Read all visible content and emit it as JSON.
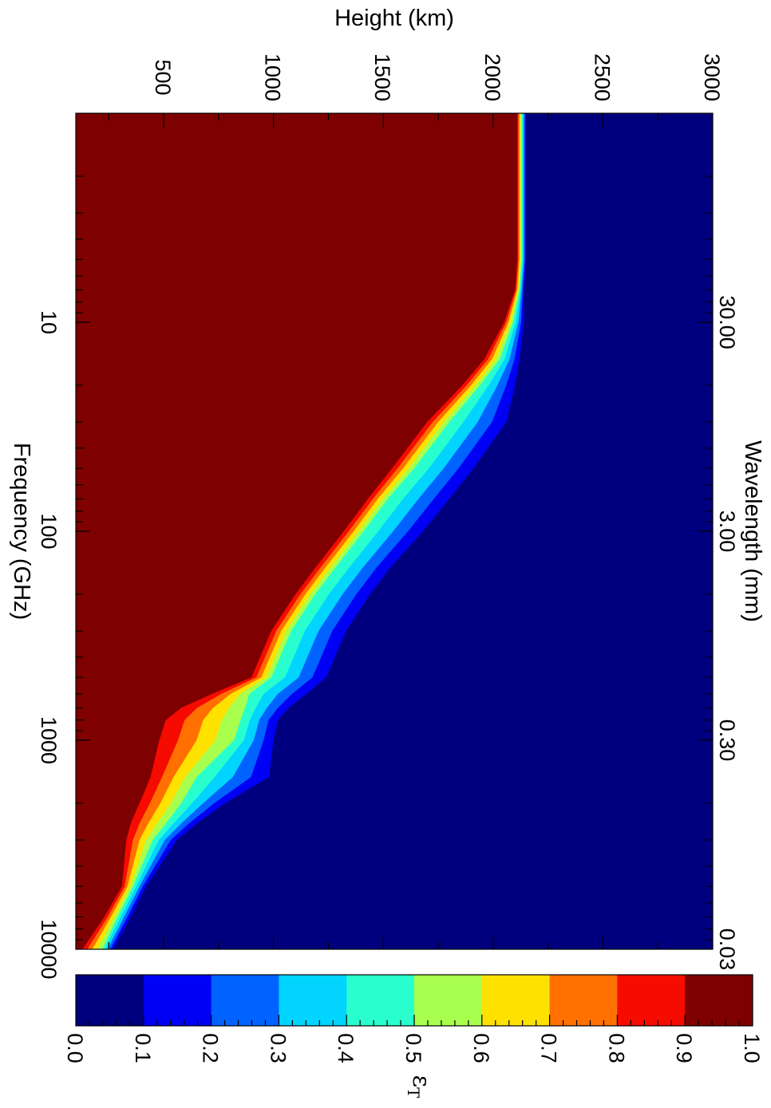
{
  "chart_data": {
    "type": "heatmap",
    "x_axis_bottom": {
      "label": "Frequency (GHz)",
      "scale": "log",
      "range": [
        1,
        10000
      ],
      "ticks": [
        "10",
        "100",
        "1000",
        "10000"
      ]
    },
    "x_axis_top": {
      "label": "Wavelength (mm)",
      "scale": "log",
      "ticks": [
        "30.00",
        "3.00",
        "0.30",
        "0.03"
      ]
    },
    "y_axis": {
      "label": "Height (km)",
      "range": [
        100,
        3000
      ],
      "ticks": [
        "500",
        "1000",
        "1500",
        "2000",
        "2500",
        "3000"
      ]
    },
    "colorbar": {
      "label": "ε",
      "label_subscript": "T",
      "levels": [
        "0.0",
        "0.1",
        "0.2",
        "0.3",
        "0.4",
        "0.5",
        "0.6",
        "0.7",
        "0.8",
        "0.9",
        "1.0"
      ],
      "colors": [
        "#00007f",
        "#0000f5",
        "#0062ff",
        "#00d4ff",
        "#29ffce",
        "#a9ff4e",
        "#ffe100",
        "#ff7000",
        "#f50b00",
        "#7f0000"
      ]
    },
    "contours": {
      "frequency_GHz": [
        1,
        2,
        3,
        5,
        7,
        10,
        15,
        20,
        30,
        50,
        70,
        100,
        150,
        200,
        300,
        500,
        600,
        700,
        800,
        1000,
        1500,
        2000,
        2500,
        3000,
        5000,
        7000,
        10000
      ],
      "height_eps_0.9": [
        2110,
        2110,
        2110,
        2110,
        2100,
        2050,
        1960,
        1860,
        1700,
        1540,
        1430,
        1320,
        1190,
        1100,
        990,
        900,
        720,
        580,
        510,
        480,
        440,
        390,
        350,
        330,
        310,
        230,
        130
      ],
      "height_eps_0.5": [
        2130,
        2130,
        2130,
        2130,
        2120,
        2090,
        2030,
        1940,
        1800,
        1640,
        1520,
        1410,
        1280,
        1190,
        1080,
        990,
        890,
        870,
        850,
        820,
        650,
        580,
        510,
        450,
        360,
        290,
        220
      ],
      "height_eps_0.1": [
        2150,
        2150,
        2150,
        2150,
        2140,
        2140,
        2120,
        2100,
        2060,
        1910,
        1800,
        1680,
        1530,
        1440,
        1330,
        1240,
        1150,
        1070,
        1020,
        1000,
        980,
        780,
        650,
        560,
        420,
        350,
        270
      ]
    }
  }
}
